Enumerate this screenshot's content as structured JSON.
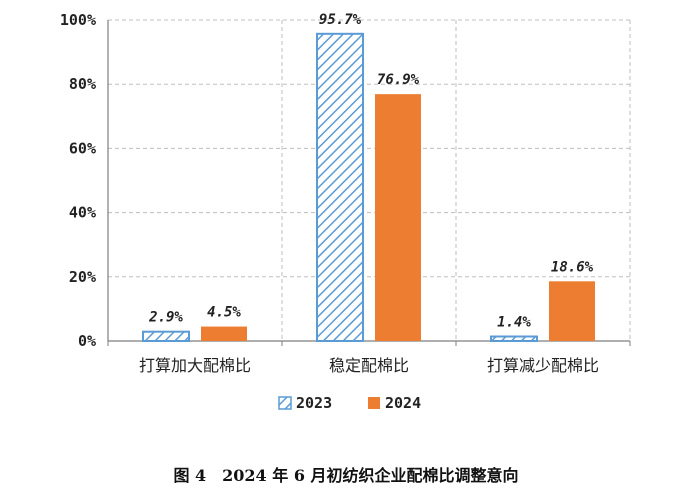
{
  "chart_data": {
    "type": "bar",
    "categories": [
      "打算加大配棉比",
      "稳定配棉比",
      "打算减少配棉比"
    ],
    "series": [
      {
        "name": "2023",
        "values": [
          2.9,
          95.7,
          1.4
        ],
        "labels": [
          "2.9%",
          "95.7%",
          "1.4%"
        ],
        "color": "#5b9bd5",
        "pattern": "hatch"
      },
      {
        "name": "2024",
        "values": [
          4.5,
          76.9,
          18.6
        ],
        "labels": [
          "4.5%",
          "76.9%",
          "18.6%"
        ],
        "color": "#ed7d31",
        "pattern": "solid"
      }
    ],
    "yticks": [
      "0%",
      "20%",
      "40%",
      "60%",
      "80%",
      "100%"
    ],
    "ylim": [
      0,
      100
    ],
    "grid": true,
    "legend_position": "bottom",
    "caption": "图 4　2024 年 6 月初纺织企业配棉比调整意向"
  }
}
